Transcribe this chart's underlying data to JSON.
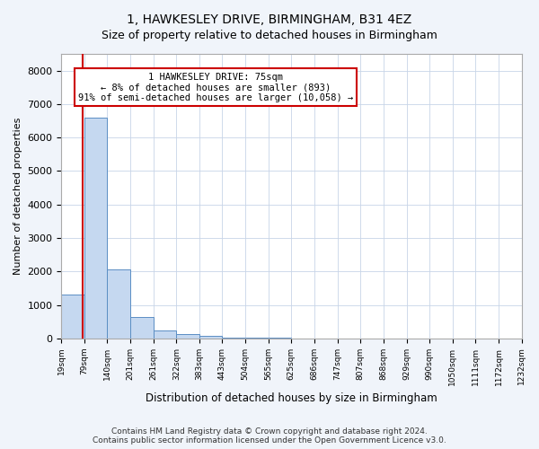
{
  "title": "1, HAWKESLEY DRIVE, BIRMINGHAM, B31 4EZ",
  "subtitle": "Size of property relative to detached houses in Birmingham",
  "xlabel": "Distribution of detached houses by size in Birmingham",
  "ylabel": "Number of detached properties",
  "bar_color": "#c5d8f0",
  "bar_edge_color": "#5b8ec4",
  "bin_edges": [
    19,
    79,
    140,
    201,
    261,
    322,
    383,
    443,
    504,
    565,
    625,
    686,
    747,
    807,
    868,
    929,
    990,
    1050,
    1111,
    1172,
    1232
  ],
  "bar_heights": [
    1300,
    6600,
    2050,
    650,
    250,
    130,
    80,
    30,
    15,
    10,
    5,
    3,
    2,
    1,
    1,
    1,
    1,
    1,
    1,
    1
  ],
  "property_size": 75,
  "annotation_line1": "1 HAWKESLEY DRIVE: 75sqm",
  "annotation_line2": "← 8% of detached houses are smaller (893)",
  "annotation_line3": "91% of semi-detached houses are larger (10,058) →",
  "annotation_box_color": "#ffffff",
  "annotation_box_edge_color": "#cc0000",
  "vline_color": "#cc0000",
  "tick_labels": [
    "19sqm",
    "79sqm",
    "140sqm",
    "201sqm",
    "261sqm",
    "322sqm",
    "383sqm",
    "443sqm",
    "504sqm",
    "565sqm",
    "625sqm",
    "686sqm",
    "747sqm",
    "807sqm",
    "868sqm",
    "929sqm",
    "990sqm",
    "1050sqm",
    "1111sqm",
    "1172sqm",
    "1232sqm"
  ],
  "ylim": [
    0,
    8500
  ],
  "yticks": [
    0,
    1000,
    2000,
    3000,
    4000,
    5000,
    6000,
    7000,
    8000
  ],
  "footer_text": "Contains HM Land Registry data © Crown copyright and database right 2024.\nContains public sector information licensed under the Open Government Licence v3.0.",
  "figure_facecolor": "#f0f4fa",
  "plot_facecolor": "#ffffff",
  "title_fontsize": 10,
  "subtitle_fontsize": 9
}
